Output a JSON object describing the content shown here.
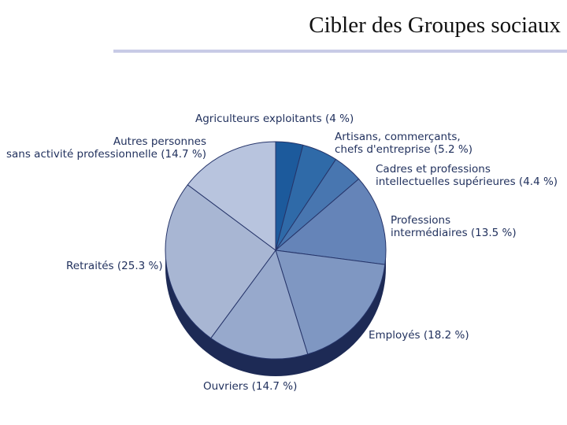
{
  "slide": {
    "title": "Cibler des Groupes sociaux"
  },
  "chart_data": {
    "type": "pie",
    "title": "",
    "legend": "none",
    "slices": [
      {
        "name": "Agriculteurs exploitants",
        "value": 4.0,
        "color": "#1c5a9c",
        "label_lines": [
          "Agriculteurs exploitants (4 %)"
        ]
      },
      {
        "name": "Artisans, commerçants, chefs d'entreprise",
        "value": 5.2,
        "color": "#2f6aa8",
        "label_lines": [
          "Artisans, commerçants,",
          "chefs d'entreprise (5.2 %)"
        ]
      },
      {
        "name": "Cadres et professions intellectuelles supérieures",
        "value": 4.4,
        "color": "#4876b0",
        "label_lines": [
          "Cadres et professions",
          "intellectuelles supérieures (4.4 %)"
        ]
      },
      {
        "name": "Professions intermédiaires",
        "value": 13.5,
        "color": "#6584b8",
        "label_lines": [
          "Professions",
          "intermédiaires (13.5 %)"
        ]
      },
      {
        "name": "Employés",
        "value": 18.2,
        "color": "#7f97c2",
        "label_lines": [
          "Employés (18.2 %)"
        ]
      },
      {
        "name": "Ouvriers",
        "value": 14.7,
        "color": "#97a9cc",
        "label_lines": [
          "Ouvriers (14.7 %)"
        ]
      },
      {
        "name": "Retraités",
        "value": 25.3,
        "color": "#a8b6d3",
        "label_lines": [
          "Retraités (25.3 %)"
        ]
      },
      {
        "name": "Autres personnes sans activité professionnelle",
        "value": 14.7,
        "color": "#b8c4de",
        "label_lines": [
          "Autres personnes",
          "sans activité professionnelle (14.7 %)"
        ]
      }
    ],
    "depth_color": "#1d2a55"
  }
}
